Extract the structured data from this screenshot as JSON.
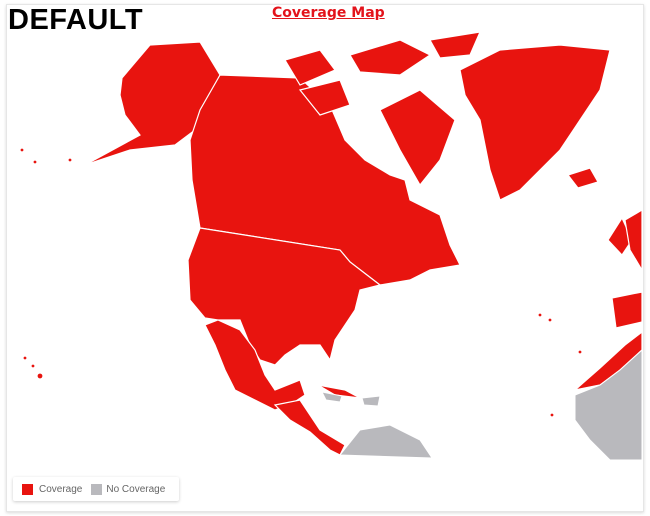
{
  "label": "DEFAULT",
  "title": "Coverage Map",
  "colors": {
    "coverage": "#e8140f",
    "no_coverage": "#b9b9bd",
    "border": "#ffffff"
  },
  "legend": [
    {
      "label": "Coverage",
      "color": "#e8140f"
    },
    {
      "label": "No Coverage",
      "color": "#b9b9bd"
    }
  ]
}
